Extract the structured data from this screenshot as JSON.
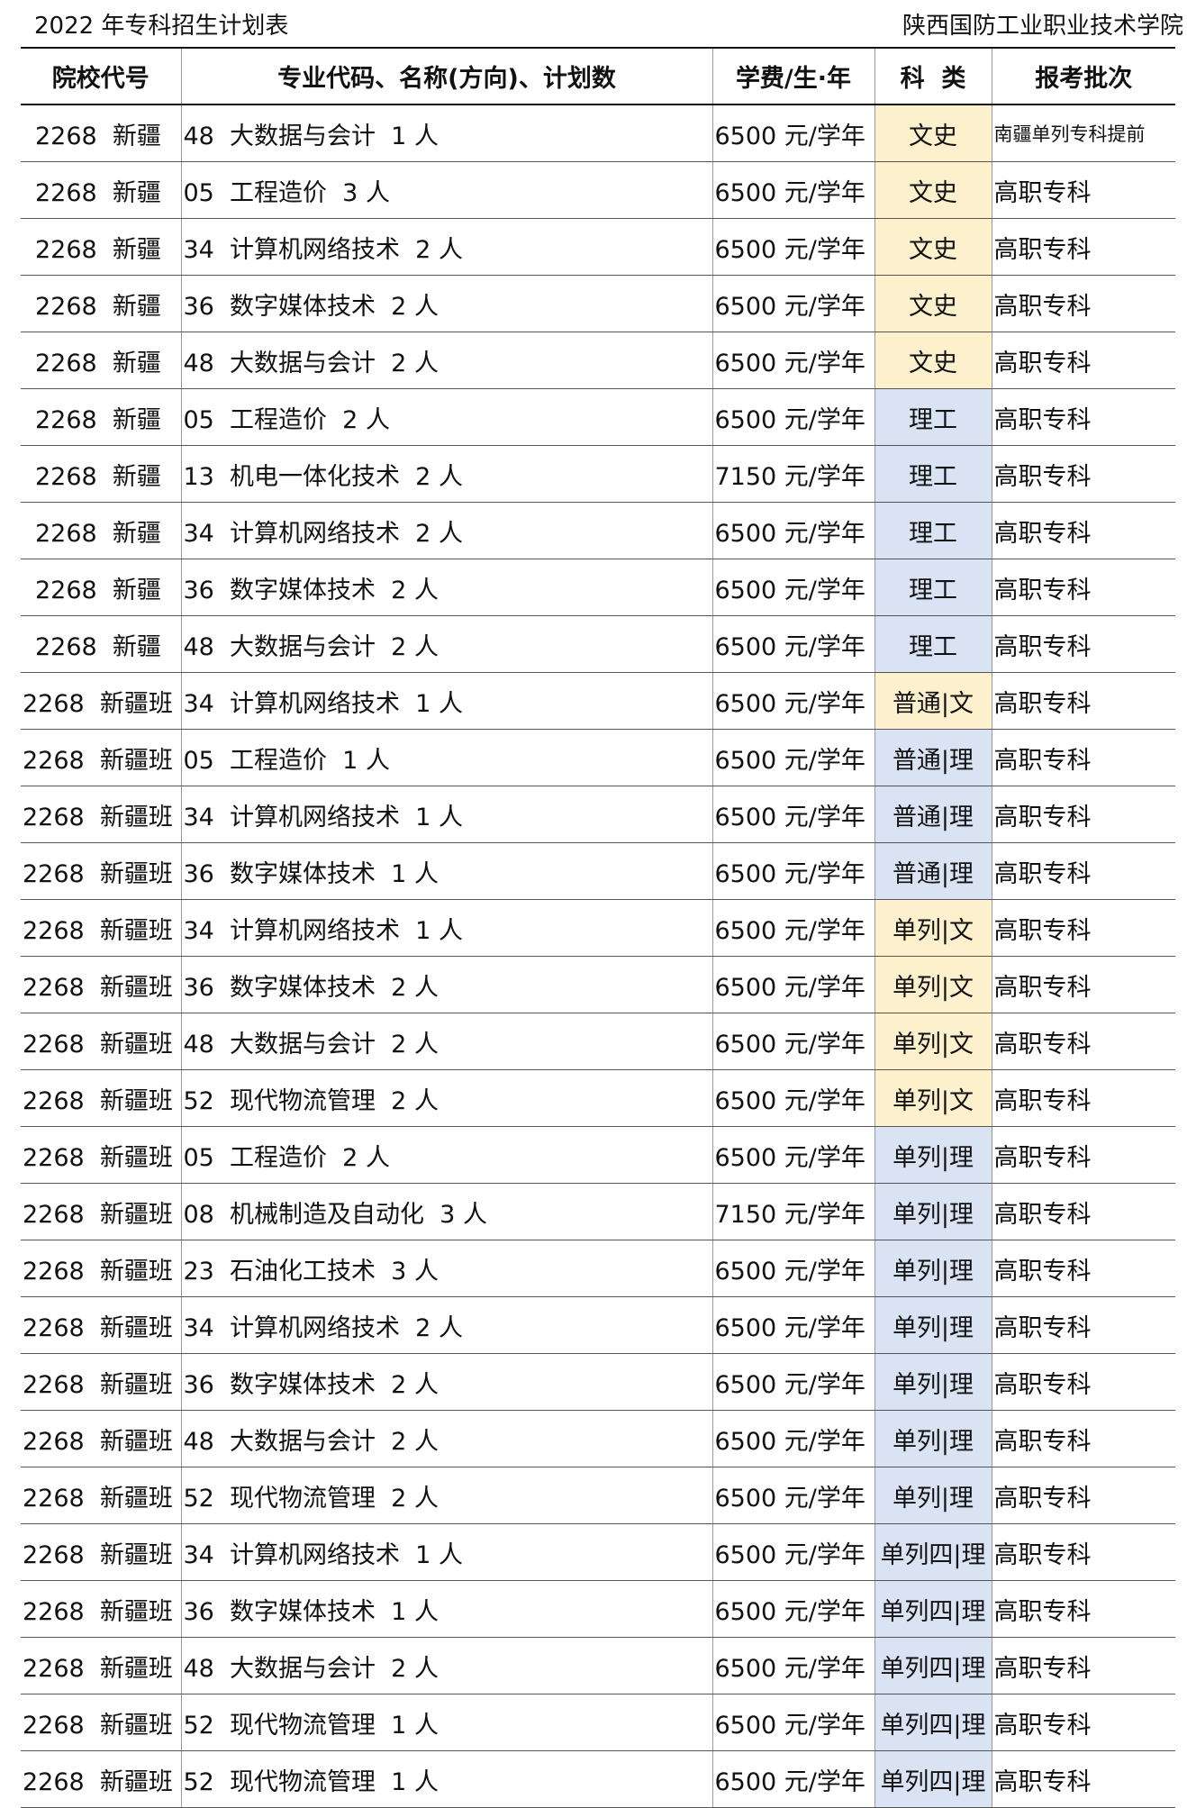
{
  "title": "2022 年专科招生计划表",
  "school": "陕西国防工业职业技术学院",
  "colors": {
    "wen_bg": "#fdf0cd",
    "li_bg": "#dae3f3"
  },
  "headers": [
    "院校代号",
    "专业代码、名称(方向)、计划数",
    "学费/生·年",
    "科  类",
    "报考批次"
  ],
  "rows": [
    [
      "2268  新疆",
      "48  大数据与会计  1 人",
      "6500 元/学年",
      "文史",
      "南疆单列专科提前"
    ],
    [
      "2268  新疆",
      "05  工程造价  3 人",
      "6500 元/学年",
      "文史",
      "高职专科"
    ],
    [
      "2268  新疆",
      "34  计算机网络技术  2 人",
      "6500 元/学年",
      "文史",
      "高职专科"
    ],
    [
      "2268  新疆",
      "36  数字媒体技术  2 人",
      "6500 元/学年",
      "文史",
      "高职专科"
    ],
    [
      "2268  新疆",
      "48  大数据与会计  2 人",
      "6500 元/学年",
      "文史",
      "高职专科"
    ],
    [
      "2268  新疆",
      "05  工程造价  2 人",
      "6500 元/学年",
      "理工",
      "高职专科"
    ],
    [
      "2268  新疆",
      "13  机电一体化技术  2 人",
      "7150 元/学年",
      "理工",
      "高职专科"
    ],
    [
      "2268  新疆",
      "34  计算机网络技术  2 人",
      "6500 元/学年",
      "理工",
      "高职专科"
    ],
    [
      "2268  新疆",
      "36  数字媒体技术  2 人",
      "6500 元/学年",
      "理工",
      "高职专科"
    ],
    [
      "2268  新疆",
      "48  大数据与会计  2 人",
      "6500 元/学年",
      "理工",
      "高职专科"
    ],
    [
      "2268  新疆班",
      "34  计算机网络技术  1 人",
      "6500 元/学年",
      "普通|文",
      "高职专科"
    ],
    [
      "2268  新疆班",
      "05  工程造价  1 人",
      "6500 元/学年",
      "普通|理",
      "高职专科"
    ],
    [
      "2268  新疆班",
      "34  计算机网络技术  1 人",
      "6500 元/学年",
      "普通|理",
      "高职专科"
    ],
    [
      "2268  新疆班",
      "36  数字媒体技术  1 人",
      "6500 元/学年",
      "普通|理",
      "高职专科"
    ],
    [
      "2268  新疆班",
      "34  计算机网络技术  1 人",
      "6500 元/学年",
      "单列|文",
      "高职专科"
    ],
    [
      "2268  新疆班",
      "36  数字媒体技术  2 人",
      "6500 元/学年",
      "单列|文",
      "高职专科"
    ],
    [
      "2268  新疆班",
      "48  大数据与会计  2 人",
      "6500 元/学年",
      "单列|文",
      "高职专科"
    ],
    [
      "2268  新疆班",
      "52  现代物流管理  2 人",
      "6500 元/学年",
      "单列|文",
      "高职专科"
    ],
    [
      "2268  新疆班",
      "05  工程造价  2 人",
      "6500 元/学年",
      "单列|理",
      "高职专科"
    ],
    [
      "2268  新疆班",
      "08  机械制造及自动化  3 人",
      "7150 元/学年",
      "单列|理",
      "高职专科"
    ],
    [
      "2268  新疆班",
      "23  石油化工技术  3 人",
      "6500 元/学年",
      "单列|理",
      "高职专科"
    ],
    [
      "2268  新疆班",
      "34  计算机网络技术  2 人",
      "6500 元/学年",
      "单列|理",
      "高职专科"
    ],
    [
      "2268  新疆班",
      "36  数字媒体技术  2 人",
      "6500 元/学年",
      "单列|理",
      "高职专科"
    ],
    [
      "2268  新疆班",
      "48  大数据与会计  2 人",
      "6500 元/学年",
      "单列|理",
      "高职专科"
    ],
    [
      "2268  新疆班",
      "52  现代物流管理  2 人",
      "6500 元/学年",
      "单列|理",
      "高职专科"
    ],
    [
      "2268  新疆班",
      "34  计算机网络技术  1 人",
      "6500 元/学年",
      "单列四|理",
      "高职专科"
    ],
    [
      "2268  新疆班",
      "36  数字媒体技术  1 人",
      "6500 元/学年",
      "单列四|理",
      "高职专科"
    ],
    [
      "2268  新疆班",
      "48  大数据与会计  2 人",
      "6500 元/学年",
      "单列四|理",
      "高职专科"
    ],
    [
      "2268  新疆班",
      "52  现代物流管理  1 人",
      "6500 元/学年",
      "单列四|理",
      "高职专科"
    ],
    [
      "2268  新疆班",
      "52  现代物流管理  1 人",
      "6500 元/学年",
      "单列四|理",
      "高职专科"
    ]
  ]
}
